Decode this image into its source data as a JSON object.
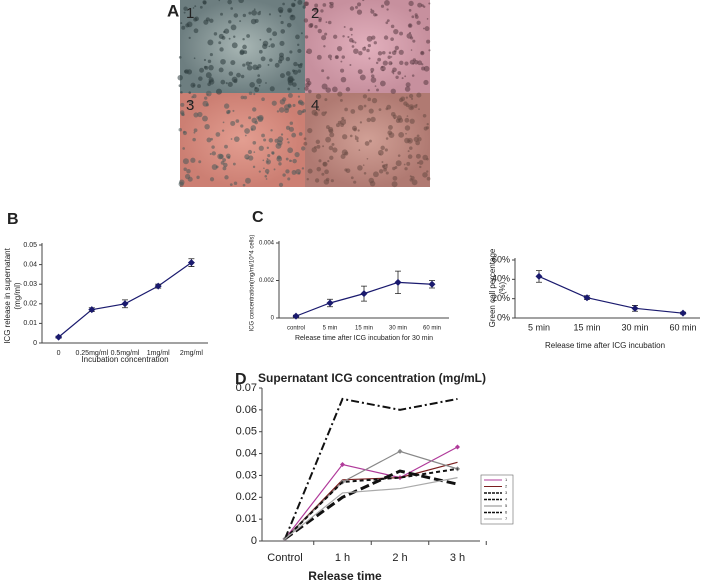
{
  "panel_a": {
    "label": "A",
    "images": [
      "1",
      "2",
      "3",
      "4"
    ]
  },
  "chart_data": [
    {
      "type": "line",
      "panel_label": "B",
      "ylabel": [
        "ICG release in supernatant",
        "(mg/ml)"
      ],
      "xlabel": "Incubation concentration",
      "categories": [
        "0",
        "0.25mg/ml",
        "0.5mg/ml",
        "1mg/ml",
        "2mg/ml"
      ],
      "values": [
        0.003,
        0.017,
        0.02,
        0.029,
        0.041
      ],
      "errors": [
        0.0005,
        0.001,
        0.002,
        0.001,
        0.002
      ],
      "color": "#1a1a6e",
      "marker": "diamond",
      "ylim": [
        0,
        0.05
      ],
      "yticks": [
        0,
        0.01,
        0.02,
        0.03,
        0.04,
        0.05
      ]
    },
    {
      "type": "line",
      "panel_label": "C",
      "ylabel": [
        "ICG concentration(mg/ml/10^4 cells)"
      ],
      "xlabel": "Release time after ICG incubation for 30 min",
      "categories": [
        "control",
        "5 min",
        "15 min",
        "30 min",
        "60 min"
      ],
      "values": [
        0.0001,
        0.0008,
        0.0013,
        0.0019,
        0.0018
      ],
      "errors": [
        5e-05,
        0.0002,
        0.0004,
        0.0006,
        0.0002
      ],
      "color": "#1a1a6e",
      "marker": "diamond",
      "ylim": [
        0,
        0.004
      ],
      "yticks": [
        0,
        0.002,
        0.004
      ]
    },
    {
      "type": "line",
      "ylabel": [
        "Green cell percentage",
        "(%)"
      ],
      "xlabel": "Release time after ICG incubation",
      "categories": [
        "5 min",
        "15 min",
        "30 min",
        "60 min"
      ],
      "values": [
        43,
        21,
        10,
        5
      ],
      "errors": [
        6,
        2,
        3,
        1
      ],
      "color": "#1a1a6e",
      "marker": "diamond",
      "ylim": [
        0,
        60
      ],
      "yticks": [
        {
          "value": 0,
          "label": "0%"
        },
        {
          "value": 20,
          "label": "20%"
        },
        {
          "value": 40,
          "label": "40%"
        },
        {
          "value": 60,
          "label": "60%"
        }
      ]
    },
    {
      "type": "line",
      "panel_label": "D",
      "title": "Supernatant ICG concentration (mg/mL)",
      "xlabel": "Release time",
      "categories": [
        "Control",
        "1 h",
        "2 h",
        "3 h"
      ],
      "series": [
        {
          "name": "1",
          "color": "#b03a9a",
          "marker": "diamond",
          "values": [
            0.001,
            0.035,
            0.029,
            0.043
          ]
        },
        {
          "name": "2",
          "color": "#7a1f1f",
          "values": [
            0.001,
            0.028,
            0.029,
            0.036
          ]
        },
        {
          "name": "3",
          "color": "#111111",
          "dash": "8 3 2 3",
          "width": 2,
          "values": [
            0.001,
            0.065,
            0.06,
            0.065
          ]
        },
        {
          "name": "4",
          "color": "#111111",
          "dash": "9 4",
          "width": 3,
          "values": [
            0.001,
            0.02,
            0.032,
            0.026
          ]
        },
        {
          "name": "5",
          "color": "#888888",
          "marker": "diamond",
          "values": [
            0.001,
            0.027,
            0.041,
            0.033
          ]
        },
        {
          "name": "6",
          "color": "#111111",
          "dash": "4 3",
          "width": 2,
          "values": [
            0.001,
            0.027,
            0.029,
            0.033
          ]
        },
        {
          "name": "7",
          "color": "#aaaaaa",
          "values": [
            0.001,
            0.022,
            0.024,
            0.029
          ]
        }
      ],
      "ylim": [
        0,
        0.07
      ],
      "yticks": [
        0,
        0.01,
        0.02,
        0.03,
        0.04,
        0.05,
        0.06,
        0.07
      ]
    }
  ]
}
